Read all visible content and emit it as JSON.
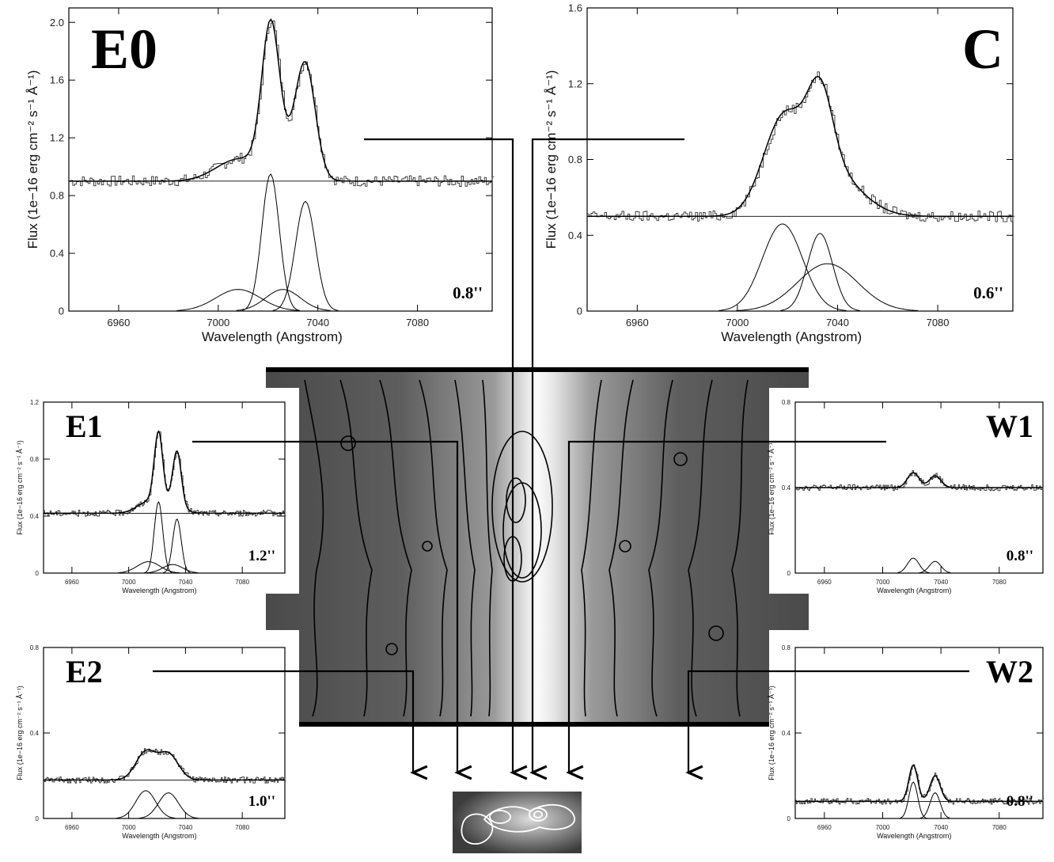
{
  "chart_data": [
    {
      "id": "E0",
      "type": "line",
      "panel_label": "E0",
      "aperture": "0.8''",
      "xlabel": "Wavelength (Angstrom)",
      "ylabel": "Flux (1e−16 erg cm⁻² s⁻¹ Å⁻¹)",
      "xlim": [
        6940,
        7110
      ],
      "ylim": [
        0,
        2.1
      ],
      "xticks": [
        "6960",
        "7000",
        "7040",
        "7080"
      ],
      "yticks": [
        "0",
        "0.4",
        "0.8",
        "1.2",
        "1.6",
        "2.0"
      ],
      "continuum": 0.9,
      "components": [
        {
          "center": 7021,
          "amp": 0.95,
          "sigma": 3.5
        },
        {
          "center": 7035,
          "amp": 0.76,
          "sigma": 4.0
        },
        {
          "center": 7008,
          "amp": 0.15,
          "sigma": 9.0
        },
        {
          "center": 7026,
          "amp": 0.15,
          "sigma": 7.0
        }
      ]
    },
    {
      "id": "C",
      "type": "line",
      "panel_label": "C",
      "aperture": "0.6''",
      "xlabel": "Wavelength (Angstrom)",
      "ylabel": "Flux (1e−16 erg cm⁻² s⁻¹ Å⁻¹)",
      "xlim": [
        6940,
        7110
      ],
      "ylim": [
        0,
        1.6
      ],
      "xticks": [
        "6960",
        "7000",
        "7040",
        "7080"
      ],
      "yticks": [
        "0",
        "0.4",
        "0.8",
        "1.2",
        "1.6"
      ],
      "continuum": 0.5,
      "components": [
        {
          "center": 7018,
          "amp": 0.46,
          "sigma": 8.0
        },
        {
          "center": 7033,
          "amp": 0.41,
          "sigma": 5.0
        },
        {
          "center": 7036,
          "amp": 0.25,
          "sigma": 12.0
        }
      ]
    },
    {
      "id": "E1",
      "type": "line",
      "panel_label": "E1",
      "aperture": "1.2''",
      "xlabel": "Wavelength (Angstrom)",
      "ylabel": "Flux (1e−16 erg cm⁻² s⁻¹ Å⁻¹)",
      "xlim": [
        6940,
        7110
      ],
      "ylim": [
        0,
        1.2
      ],
      "xticks": [
        "6960",
        "7000",
        "7040",
        "7080"
      ],
      "yticks": [
        "0",
        "0.4",
        "0.8",
        "1.2"
      ],
      "continuum": 0.42,
      "components": [
        {
          "center": 7021,
          "amp": 0.5,
          "sigma": 3.0
        },
        {
          "center": 7034,
          "amp": 0.38,
          "sigma": 3.0
        },
        {
          "center": 7014,
          "amp": 0.08,
          "sigma": 8.0
        },
        {
          "center": 7031,
          "amp": 0.06,
          "sigma": 7.0
        }
      ]
    },
    {
      "id": "W1",
      "type": "line",
      "panel_label": "W1",
      "aperture": "0.8''",
      "xlabel": "Wavelength (Angstrom)",
      "ylabel": "Flux (1e−16 erg cm⁻² s⁻¹ Å⁻¹)",
      "xlim": [
        6940,
        7110
      ],
      "ylim": [
        0,
        0.8
      ],
      "xticks": [
        "6960",
        "7000",
        "7040",
        "7080"
      ],
      "yticks": [
        "0",
        "0.4",
        "0.8"
      ],
      "continuum": 0.4,
      "components": [
        {
          "center": 7021,
          "amp": 0.07,
          "sigma": 4.0
        },
        {
          "center": 7036,
          "amp": 0.055,
          "sigma": 4.0
        }
      ]
    },
    {
      "id": "E2",
      "type": "line",
      "panel_label": "E2",
      "aperture": "1.0''",
      "xlabel": "Wavelength (Angstrom)",
      "ylabel": "Flux (1e−16 erg cm⁻² s⁻¹ Å⁻¹)",
      "xlim": [
        6940,
        7110
      ],
      "ylim": [
        0,
        0.8
      ],
      "xticks": [
        "6960",
        "7000",
        "7040",
        "7080"
      ],
      "yticks": [
        "0",
        "0.4",
        "0.8"
      ],
      "continuum": 0.18,
      "components": [
        {
          "center": 7012,
          "amp": 0.13,
          "sigma": 7.0
        },
        {
          "center": 7028,
          "amp": 0.12,
          "sigma": 7.0
        }
      ]
    },
    {
      "id": "W2",
      "type": "line",
      "panel_label": "W2",
      "aperture": "0.8''",
      "xlabel": "Wavelength (Angstrom)",
      "ylabel": "Flux (1e−16 erg cm⁻² s⁻¹ Å⁻¹)",
      "xlim": [
        6940,
        7110
      ],
      "ylim": [
        0,
        0.8
      ],
      "xticks": [
        "6960",
        "7000",
        "7040",
        "7080"
      ],
      "yticks": [
        "0",
        "0.4",
        "0.8"
      ],
      "continuum": 0.08,
      "components": [
        {
          "center": 7021,
          "amp": 0.17,
          "sigma": 3.0
        },
        {
          "center": 7036,
          "amp": 0.12,
          "sigma": 3.5
        }
      ]
    }
  ],
  "colors": {
    "ink": "#000000",
    "background": "#ffffff",
    "image_dark": "#3a3a3a",
    "image_bright": "#f2f2f2",
    "contour_light": "#ffffff"
  }
}
